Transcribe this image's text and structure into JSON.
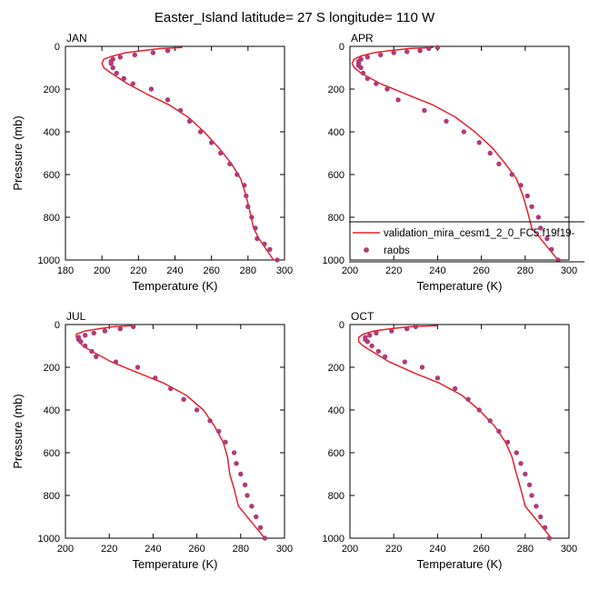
{
  "title": "Easter_Island  latitude= 27 S longitude= 110 W",
  "colors": {
    "model": "#e8202a",
    "obs": "#b03a78"
  },
  "legend": {
    "model_label": "validation_mira_cesm1_2_0_FC5.f19f19-",
    "obs_label": "raobs"
  },
  "chart_data": [
    {
      "type": "line",
      "panel": "JAN",
      "xlabel": "Temperature (K)",
      "ylabel": "Pressure (mb)",
      "xlim": [
        180,
        300
      ],
      "ylim": [
        1000,
        0
      ],
      "xticks": [
        180,
        200,
        220,
        240,
        260,
        280,
        300
      ],
      "yticks": [
        0,
        200,
        400,
        600,
        800,
        1000
      ],
      "series": [
        {
          "name": "validation_mira_cesm1_2_0_FC5.f19f19-",
          "kind": "line",
          "x": [
            244,
            232,
            222,
            213,
            206,
            201,
            200,
            201,
            205,
            214,
            225,
            237,
            247,
            256,
            264,
            271,
            276,
            279,
            281,
            283,
            286,
            290,
            294
          ],
          "y": [
            5,
            10,
            20,
            30,
            45,
            60,
            80,
            100,
            125,
            175,
            225,
            275,
            330,
            400,
            475,
            550,
            620,
            700,
            770,
            850,
            900,
            950,
            1000
          ]
        },
        {
          "name": "raobs",
          "kind": "scatter",
          "x": [
            236,
            228,
            218,
            210,
            206,
            205,
            205,
            206,
            208,
            212,
            217,
            227,
            236,
            243,
            248,
            254,
            260,
            265,
            270,
            274,
            278,
            279,
            280,
            282,
            284,
            285,
            289,
            292,
            296
          ],
          "y": [
            20,
            30,
            40,
            50,
            60,
            70,
            80,
            100,
            125,
            150,
            175,
            200,
            250,
            300,
            350,
            400,
            450,
            500,
            550,
            600,
            650,
            700,
            750,
            800,
            850,
            900,
            925,
            950,
            1000
          ]
        }
      ]
    },
    {
      "type": "line",
      "panel": "APR",
      "xlabel": "Temperature (K)",
      "ylabel": "",
      "xlim": [
        200,
        300
      ],
      "ylim": [
        1000,
        0
      ],
      "xticks": [
        200,
        220,
        240,
        260,
        280,
        300
      ],
      "yticks": [
        0,
        200,
        400,
        600,
        800,
        1000
      ],
      "series": [
        {
          "name": "validation_mira_cesm1_2_0_FC5.f19f19-",
          "kind": "line",
          "x": [
            238,
            227,
            218,
            211,
            205,
            202,
            201,
            202,
            205,
            214,
            226,
            238,
            248,
            257,
            265,
            271,
            276,
            279,
            281,
            283,
            287,
            291,
            295
          ],
          "y": [
            5,
            10,
            20,
            30,
            45,
            60,
            80,
            100,
            125,
            175,
            225,
            275,
            330,
            400,
            475,
            550,
            620,
            700,
            770,
            850,
            900,
            950,
            1000
          ]
        },
        {
          "name": "raobs",
          "kind": "scatter",
          "x": [
            240,
            236,
            232,
            226,
            220,
            214,
            208,
            205,
            204,
            204,
            204,
            205,
            206,
            208,
            212,
            217,
            222,
            234,
            244,
            252,
            259,
            264,
            268,
            274,
            278,
            281,
            283,
            286,
            287,
            290,
            292,
            295
          ],
          "y": [
            5,
            10,
            20,
            25,
            30,
            40,
            50,
            60,
            70,
            80,
            90,
            100,
            125,
            150,
            175,
            200,
            250,
            300,
            350,
            400,
            450,
            500,
            550,
            600,
            650,
            700,
            750,
            800,
            850,
            900,
            950,
            1000
          ]
        }
      ]
    },
    {
      "type": "line",
      "panel": "JUL",
      "xlabel": "Temperature (K)",
      "ylabel": "Pressure (mb)",
      "xlim": [
        200,
        300
      ],
      "ylim": [
        1000,
        0
      ],
      "xticks": [
        200,
        220,
        240,
        260,
        280,
        300
      ],
      "yticks": [
        0,
        200,
        400,
        600,
        800,
        1000
      ],
      "series": [
        {
          "name": "validation_mira_cesm1_2_0_FC5.f19f19-",
          "kind": "line",
          "x": [
            230,
            222,
            215,
            209,
            205,
            205,
            206,
            208,
            212,
            221,
            233,
            245,
            255,
            263,
            268,
            272,
            274,
            275,
            277,
            279,
            283,
            287,
            291
          ],
          "y": [
            5,
            10,
            20,
            30,
            45,
            60,
            80,
            100,
            125,
            175,
            225,
            275,
            330,
            400,
            475,
            550,
            620,
            700,
            770,
            850,
            900,
            950,
            1000
          ]
        },
        {
          "name": "raobs",
          "kind": "scatter",
          "x": [
            231,
            225,
            218,
            213,
            209,
            206,
            206,
            207,
            209,
            212,
            214,
            223,
            233,
            241,
            248,
            254,
            260,
            266,
            270,
            273,
            277,
            278,
            280,
            282,
            283,
            285,
            287,
            289,
            291
          ],
          "y": [
            10,
            20,
            30,
            40,
            50,
            60,
            70,
            80,
            100,
            125,
            150,
            175,
            200,
            250,
            300,
            350,
            400,
            450,
            500,
            550,
            600,
            650,
            700,
            750,
            800,
            850,
            900,
            950,
            1000
          ]
        }
      ]
    },
    {
      "type": "line",
      "panel": "OCT",
      "xlabel": "Temperature (K)",
      "ylabel": "",
      "xlim": [
        200,
        300
      ],
      "ylim": [
        1000,
        0
      ],
      "xticks": [
        200,
        220,
        240,
        260,
        280,
        300
      ],
      "yticks": [
        0,
        200,
        400,
        600,
        800,
        1000
      ],
      "series": [
        {
          "name": "validation_mira_cesm1_2_0_FC5.f19f19-",
          "kind": "line",
          "x": [
            240,
            227,
            218,
            211,
            206,
            204,
            204,
            206,
            210,
            218,
            229,
            241,
            251,
            259,
            266,
            271,
            274,
            276,
            278,
            280,
            284,
            288,
            292
          ],
          "y": [
            5,
            10,
            20,
            30,
            45,
            60,
            80,
            100,
            125,
            175,
            225,
            275,
            330,
            400,
            475,
            550,
            620,
            700,
            770,
            850,
            900,
            950,
            1000
          ]
        },
        {
          "name": "raobs",
          "kind": "scatter",
          "x": [
            230,
            226,
            219,
            212,
            209,
            207,
            207,
            208,
            210,
            213,
            216,
            225,
            233,
            240,
            248,
            254,
            259,
            264,
            268,
            272,
            276,
            278,
            280,
            282,
            283,
            285,
            287,
            289,
            291
          ],
          "y": [
            10,
            20,
            30,
            40,
            50,
            60,
            70,
            80,
            100,
            125,
            150,
            175,
            200,
            250,
            300,
            350,
            400,
            450,
            500,
            550,
            600,
            650,
            700,
            750,
            800,
            850,
            900,
            950,
            1000
          ]
        }
      ]
    }
  ]
}
